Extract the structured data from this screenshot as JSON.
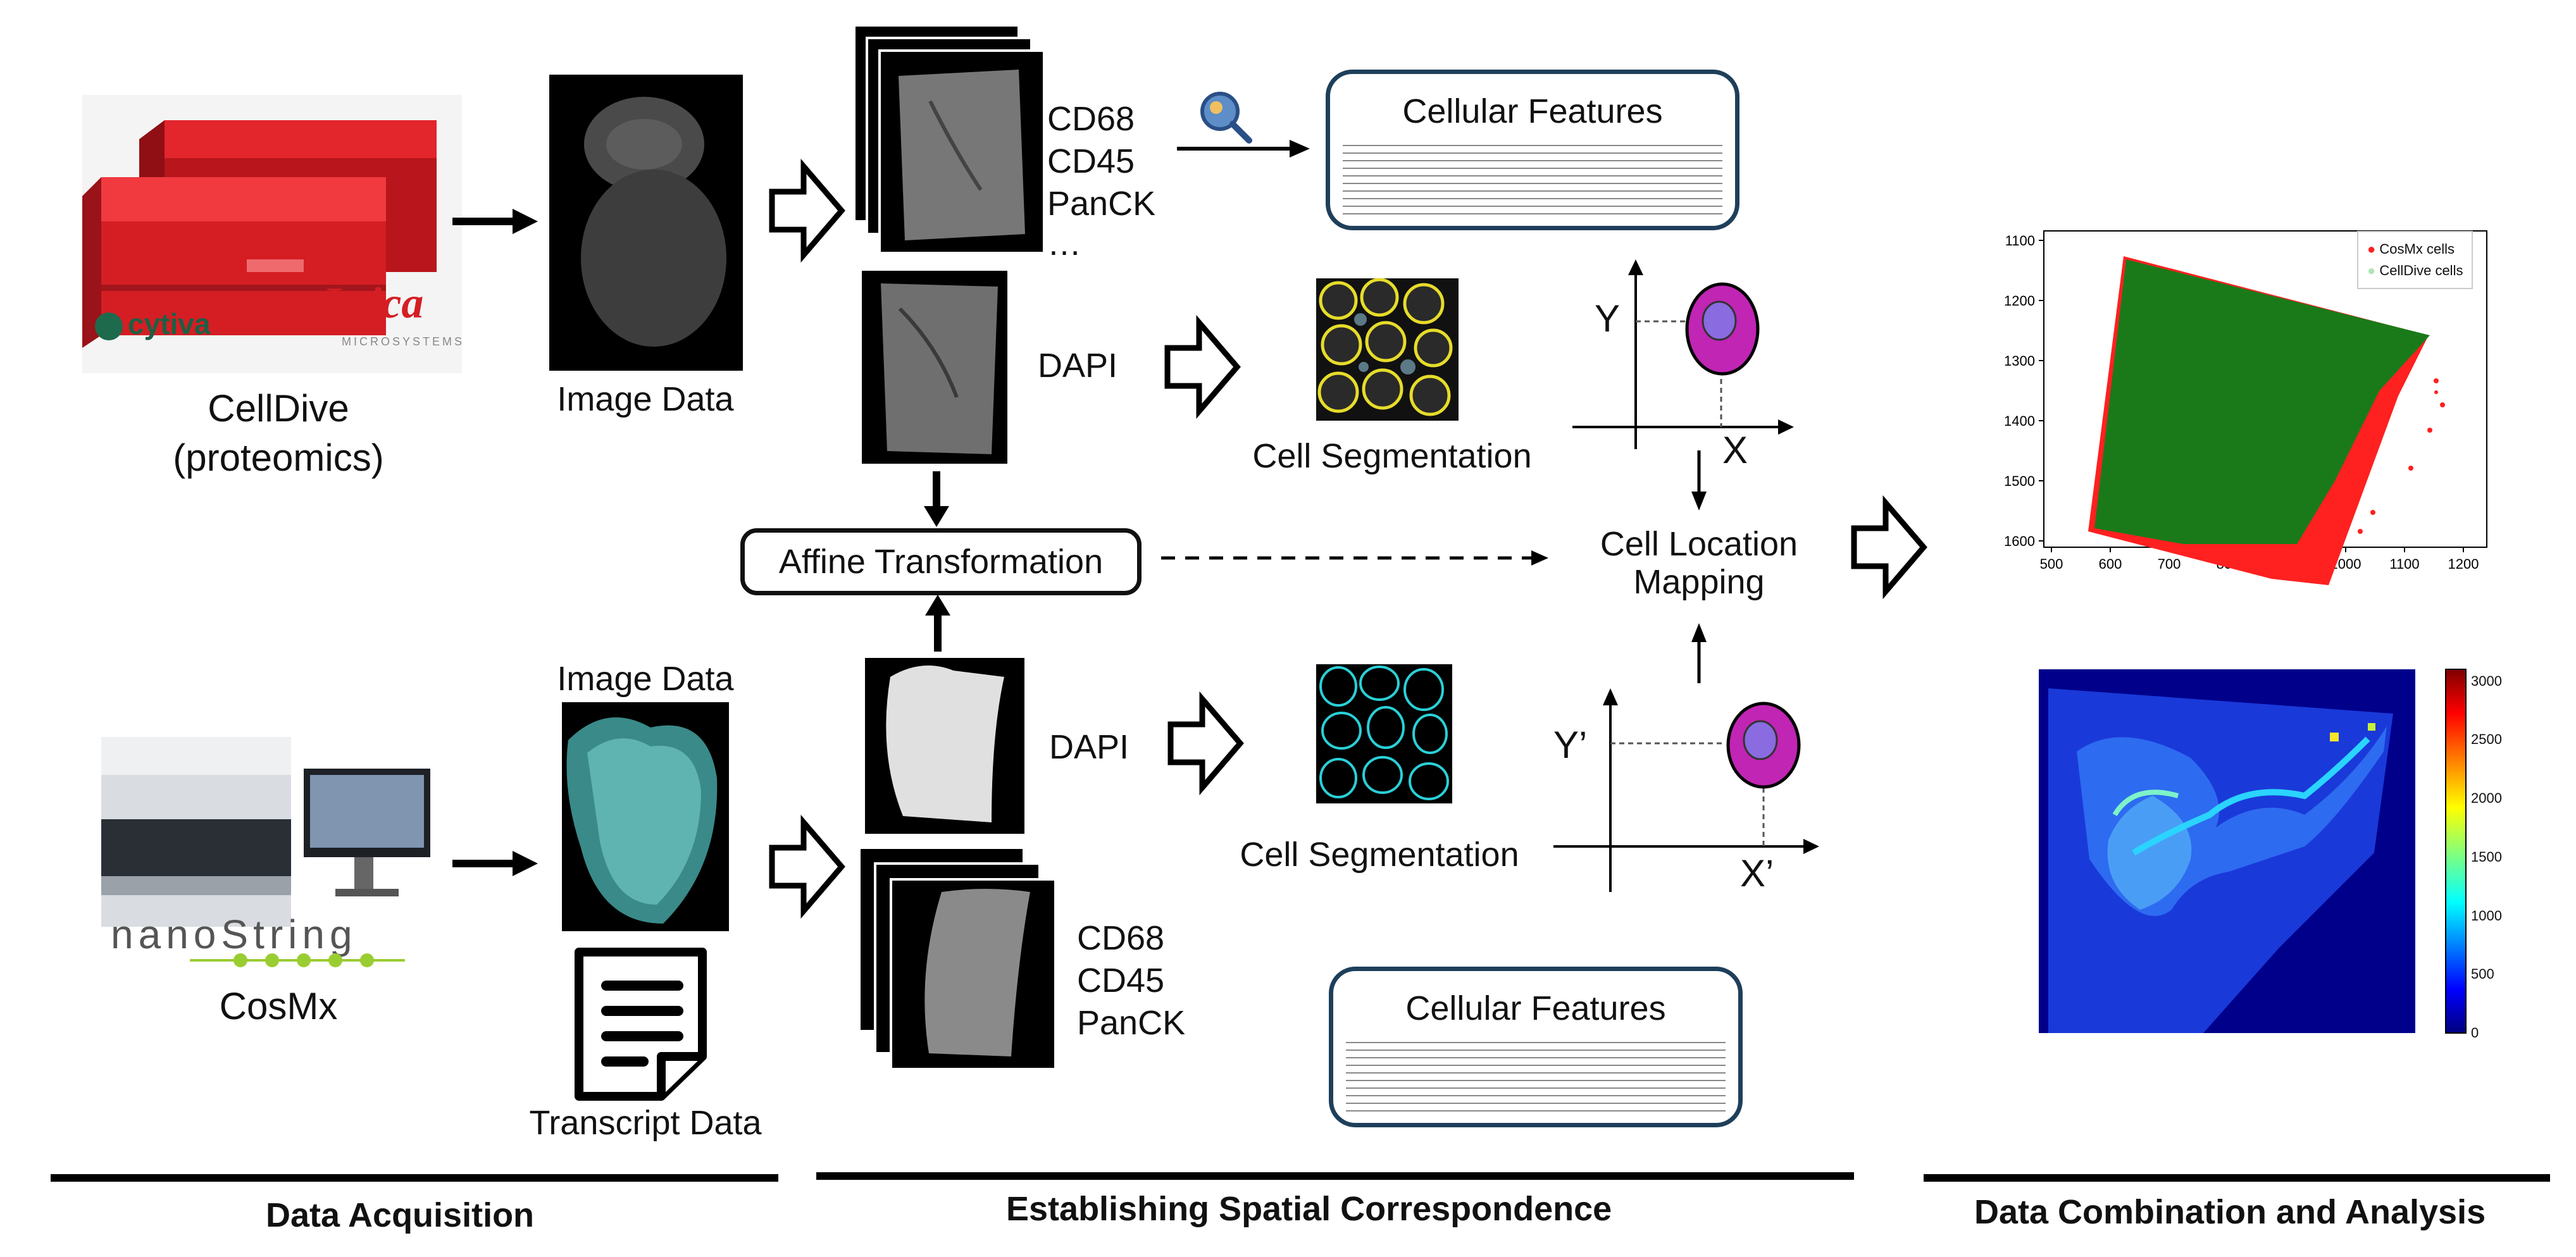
{
  "sections": {
    "acquisition": "Data Acquisition",
    "correspondence": "Establishing Spatial Correspondence",
    "combination": "Data Combination and Analysis"
  },
  "celldive": {
    "name": "CellDive",
    "subtitle": "(proteomics)",
    "brand_left": "cytiva",
    "brand_right": "Leica",
    "brand_right_sub": "MICROSYSTEMS"
  },
  "cosmx": {
    "name": "CosMx",
    "brand": "nanoString"
  },
  "labels": {
    "image_data_top": "Image Data",
    "image_data_bottom": "Image Data",
    "transcript_data": "Transcript Data",
    "markers_top": [
      "CD68",
      "CD45",
      "PanCK",
      "…"
    ],
    "markers_bottom": [
      "CD68",
      "CD45",
      "PanCK"
    ],
    "dapi_top": "DAPI",
    "dapi_bottom": "DAPI",
    "cell_seg_top": "Cell Segmentation",
    "cell_seg_bottom": "Cell Segmentation",
    "affine": "Affine Transformation",
    "cell_location_mapping": "Cell Location Mapping",
    "cellular_features_top": "Cellular Features",
    "cellular_features_bottom": "Cellular Features",
    "axis_y_top": "Y",
    "axis_x_top": "X",
    "axis_y_bottom": "Y’",
    "axis_x_bottom": "X’"
  },
  "colors": {
    "celldive_red": "#d41e24",
    "cosmx_green": "#9acd32",
    "feature_border": "#1e3f5a",
    "cell_magenta": "#c025b4",
    "nucleus_violet": "#8a6be0",
    "landmark_red": "#ff1a1a",
    "scatter_green": "#1a7a1a",
    "scatter_red": "#ff2020"
  },
  "chart_data": [
    {
      "type": "scatter",
      "series": [
        {
          "name": "CosMx cells"
        },
        {
          "name": "CellDive cells"
        }
      ],
      "xlim": [
        500,
        1200
      ],
      "ylim": [
        1600,
        1100
      ],
      "x_ticks": [
        "500",
        "600",
        "700",
        "800",
        "900",
        "1000",
        "1100",
        "1200"
      ],
      "y_ticks": [
        "1100",
        "1200",
        "1300",
        "1400",
        "1500",
        "1600"
      ],
      "legend": "top-right"
    },
    {
      "type": "heatmap",
      "colorbar_ticks": [
        "0",
        "500",
        "1000",
        "1500",
        "2000",
        "2500",
        "3000"
      ],
      "colorbar_range": [
        0,
        3100
      ]
    }
  ]
}
